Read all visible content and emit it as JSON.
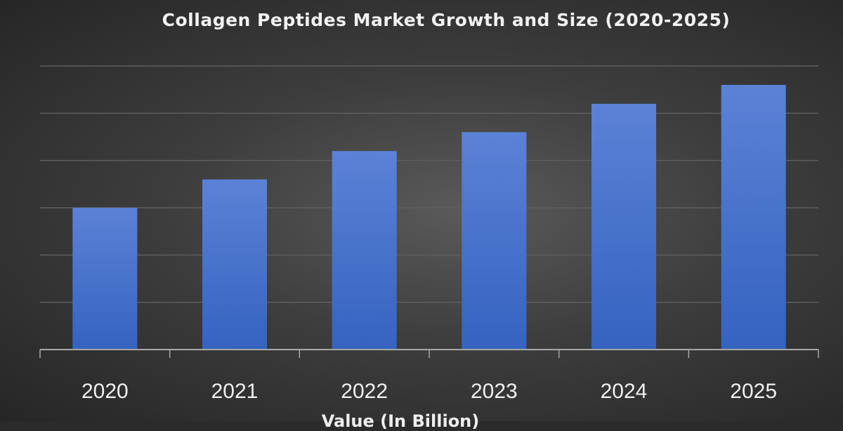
{
  "chart_data": {
    "type": "bar",
    "title": "Collagen Peptides Market Growth and Size (2020-2025)",
    "xlabel": "Value (In Billion)",
    "ylabel": "",
    "categories": [
      "2020",
      "2021",
      "2022",
      "2023",
      "2024",
      "2025"
    ],
    "values": [
      3.0,
      3.6,
      4.2,
      4.6,
      5.2,
      5.6
    ],
    "ylim": [
      0,
      6
    ],
    "grid": true,
    "y_tick_labels_shown": false,
    "bar_color": "#4472c4",
    "background": "dark gradient"
  }
}
